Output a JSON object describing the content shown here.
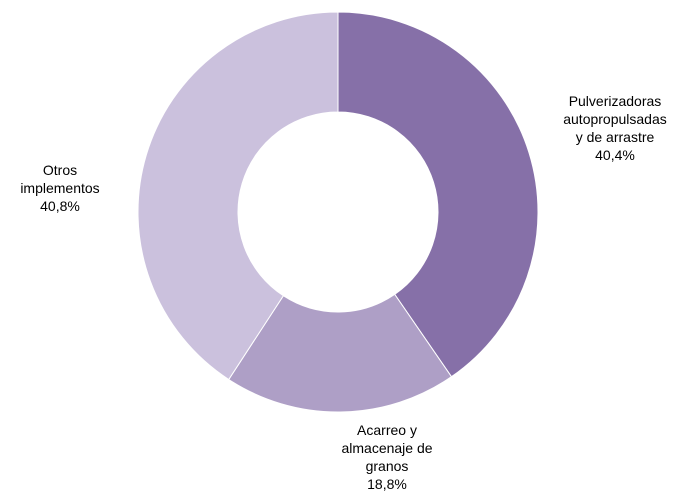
{
  "chart_data": {
    "type": "donut",
    "title": "",
    "slices": [
      {
        "label_lines": [
          "Pulverizadoras",
          "autopropulsadas",
          "y de arrastre"
        ],
        "value": 40.4,
        "value_label": "40,4%",
        "color": "#8670a8"
      },
      {
        "label_lines": [
          "Acarreo y",
          "almacenaje de",
          "granos"
        ],
        "value": 18.8,
        "value_label": "18,8%",
        "color": "#ae9fc6"
      },
      {
        "label_lines": [
          "Otros",
          "implementos"
        ],
        "value": 40.8,
        "value_label": "40,8%",
        "color": "#cbc1dd"
      }
    ],
    "start_angle": "12 o'clock",
    "direction": "clockwise",
    "legend": "none"
  }
}
